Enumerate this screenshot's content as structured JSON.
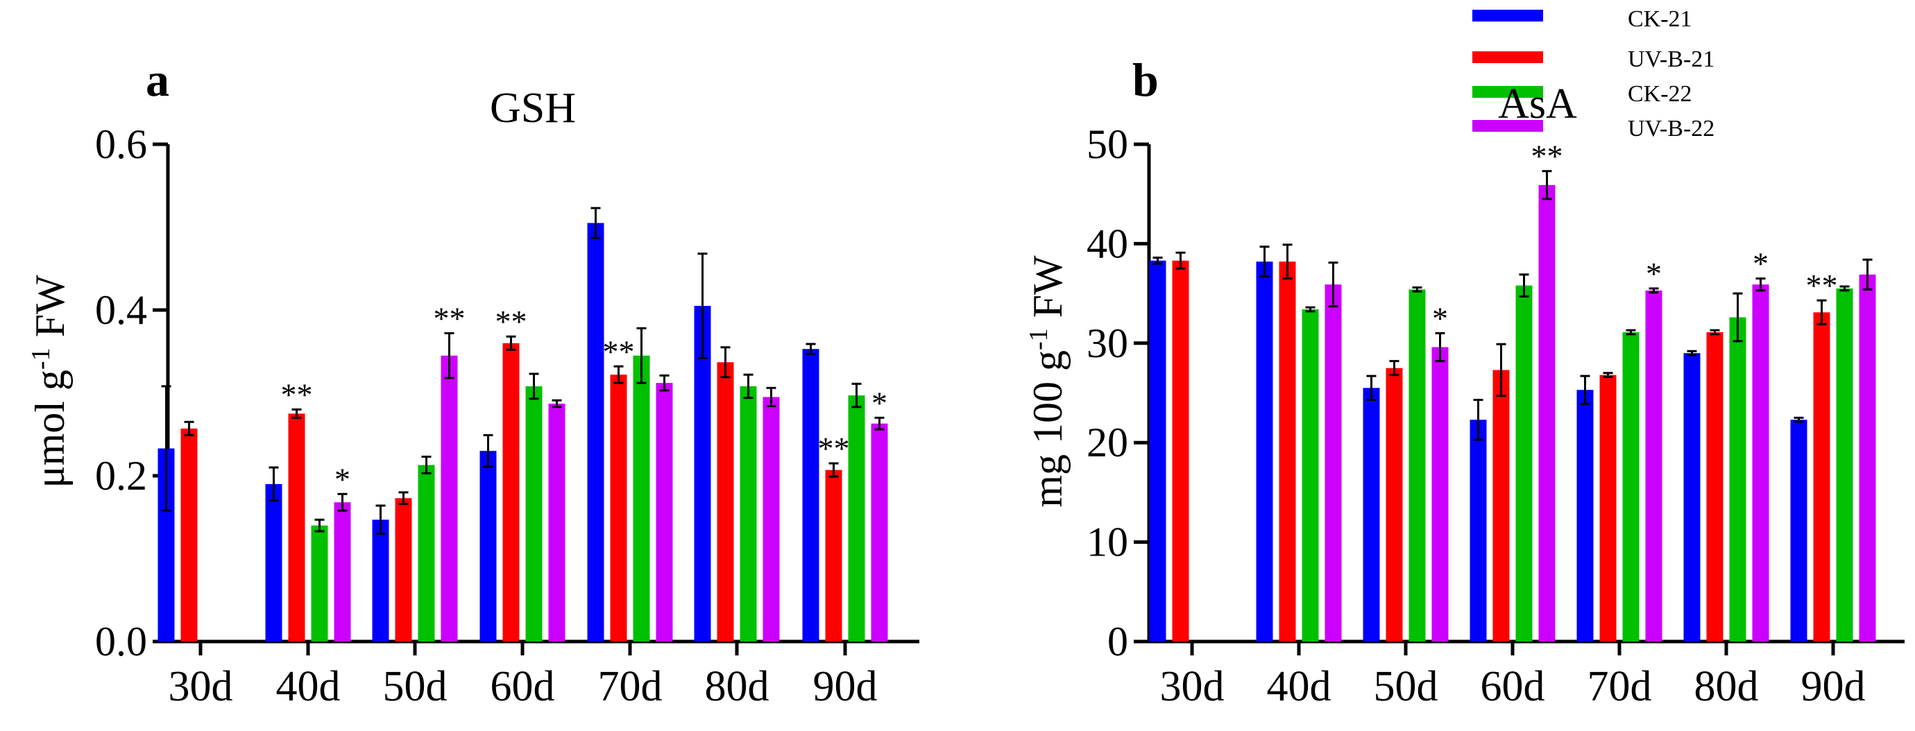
{
  "legend": [
    {
      "name": "CK-21",
      "color": "#0000ff"
    },
    {
      "name": "UV-B-21",
      "color": "#ff0000"
    },
    {
      "name": "CK-22",
      "color": "#00c000"
    },
    {
      "name": "UV-B-22",
      "color": "#cc00ff"
    }
  ],
  "chart_data": [
    {
      "type": "bar",
      "panel_label": "a",
      "title": "GSH",
      "ylabel_main": "μmol g",
      "ylabel_sup": "-1",
      "ylabel_tail": " FW",
      "xlabel": "",
      "ylim": [
        0,
        0.6
      ],
      "yticks": [
        "0.0",
        "0.2",
        "0.4",
        "0.6"
      ],
      "categories": [
        "30d",
        "40d",
        "50d",
        "60d",
        "70d",
        "80d",
        "90d"
      ],
      "series": [
        {
          "name": "CK-21",
          "values": [
            0.233,
            0.19,
            0.147,
            0.23,
            0.505,
            0.405,
            0.353
          ],
          "errors": [
            0.075,
            0.02,
            0.017,
            0.019,
            0.018,
            0.063,
            0.006
          ]
        },
        {
          "name": "UV-B-21",
          "values": [
            0.257,
            0.275,
            0.173,
            0.36,
            0.322,
            0.337,
            0.207
          ],
          "errors": [
            0.008,
            0.005,
            0.007,
            0.008,
            0.01,
            0.018,
            0.008
          ]
        },
        {
          "name": "CK-22",
          "values": [
            null,
            0.14,
            0.213,
            0.308,
            0.345,
            0.308,
            0.297
          ],
          "errors": [
            null,
            0.007,
            0.01,
            0.015,
            0.033,
            0.014,
            0.014
          ]
        },
        {
          "name": "UV-B-22",
          "values": [
            null,
            0.168,
            0.345,
            0.287,
            0.312,
            0.295,
            0.263
          ],
          "errors": [
            null,
            0.01,
            0.027,
            0.004,
            0.009,
            0.011,
            0.007
          ]
        }
      ],
      "significance": [
        {
          "category": "40d",
          "series": "UV-B-21",
          "mark": "**"
        },
        {
          "category": "40d",
          "series": "UV-B-22",
          "mark": "*"
        },
        {
          "category": "50d",
          "series": "UV-B-22",
          "mark": "**"
        },
        {
          "category": "60d",
          "series": "UV-B-21",
          "mark": "**"
        },
        {
          "category": "70d",
          "series": "UV-B-21",
          "mark": "**"
        },
        {
          "category": "90d",
          "series": "UV-B-21",
          "mark": "**"
        },
        {
          "category": "90d",
          "series": "UV-B-22",
          "mark": "*"
        }
      ]
    },
    {
      "type": "bar",
      "panel_label": "b",
      "title": "AsA",
      "ylabel_main": "mg 100 g",
      "ylabel_sup": "-1",
      "ylabel_tail": " FW",
      "xlabel": "",
      "ylim": [
        0,
        50
      ],
      "yticks": [
        "0",
        "10",
        "20",
        "30",
        "40",
        "50"
      ],
      "categories": [
        "30d",
        "40d",
        "50d",
        "60d",
        "70d",
        "80d",
        "90d"
      ],
      "series": [
        {
          "name": "CK-21",
          "values": [
            38.3,
            38.2,
            25.5,
            22.3,
            25.3,
            29.0,
            22.3
          ],
          "errors": [
            0.3,
            1.5,
            1.2,
            2.0,
            1.4,
            0.2,
            0.2
          ]
        },
        {
          "name": "UV-B-21",
          "values": [
            38.3,
            38.2,
            27.5,
            27.3,
            26.8,
            31.1,
            33.1
          ],
          "errors": [
            0.8,
            1.7,
            0.7,
            2.6,
            0.2,
            0.2,
            1.2
          ]
        },
        {
          "name": "CK-22",
          "values": [
            null,
            33.4,
            35.4,
            35.8,
            31.1,
            32.6,
            35.5
          ],
          "errors": [
            null,
            0.2,
            0.2,
            1.1,
            0.2,
            2.4,
            0.2
          ]
        },
        {
          "name": "UV-B-22",
          "values": [
            null,
            35.9,
            29.6,
            45.9,
            35.3,
            35.9,
            36.9
          ],
          "errors": [
            null,
            2.2,
            1.4,
            1.4,
            0.2,
            0.6,
            1.5
          ]
        }
      ],
      "significance": [
        {
          "category": "50d",
          "series": "UV-B-22",
          "mark": "*"
        },
        {
          "category": "60d",
          "series": "UV-B-22",
          "mark": "**"
        },
        {
          "category": "70d",
          "series": "UV-B-22",
          "mark": "*"
        },
        {
          "category": "80d",
          "series": "UV-B-22",
          "mark": "*"
        },
        {
          "category": "90d",
          "series": "UV-B-21",
          "mark": "**"
        }
      ]
    }
  ]
}
